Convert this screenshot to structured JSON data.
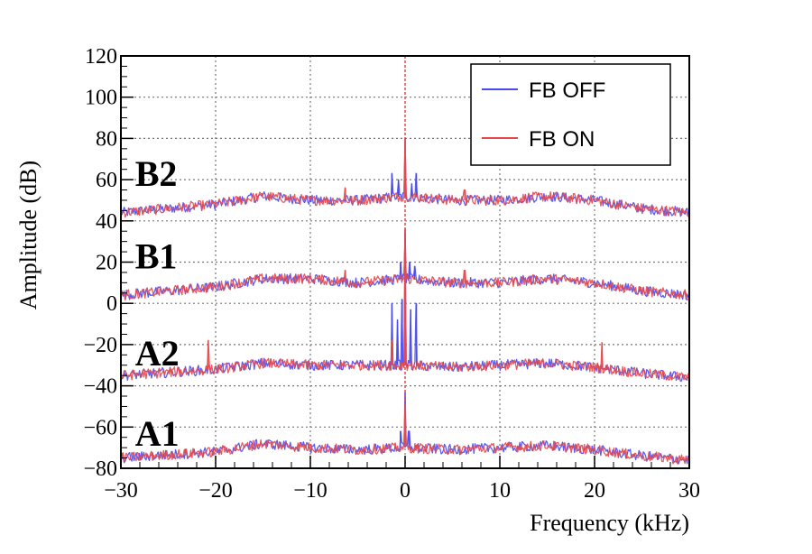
{
  "chart_data": {
    "type": "line",
    "title": "",
    "xlabel": "Frequency (kHz)",
    "ylabel": "Amplitude (dB)",
    "xlim": [
      -30,
      30
    ],
    "ylim": [
      -80,
      120
    ],
    "grid": true,
    "x_ticks": [
      -30,
      -20,
      -10,
      0,
      10,
      20,
      30
    ],
    "y_ticks": [
      -80,
      -60,
      -40,
      -20,
      0,
      20,
      40,
      60,
      80,
      100,
      120
    ],
    "x_tick_labels": [
      "−30",
      "−20",
      "−10",
      "0",
      "10",
      "20",
      "30"
    ],
    "y_tick_labels": [
      "−80",
      "−60",
      "−40",
      "−20",
      "0",
      "20",
      "40",
      "60",
      "80",
      "100",
      "120"
    ],
    "legend": {
      "position": "top-right",
      "entries": [
        {
          "label": "FB OFF",
          "color": "#4a4af0"
        },
        {
          "label": "FB ON",
          "color": "#e8484a"
        }
      ]
    },
    "traces": [
      {
        "label": "B2",
        "label_anchor": [
          -28.5,
          63
        ],
        "baseline": [
          [
            -30,
            44
          ],
          [
            -20,
            48
          ],
          [
            -15,
            52
          ],
          [
            -10,
            50
          ],
          [
            -5,
            50
          ],
          [
            0,
            52
          ],
          [
            5,
            50
          ],
          [
            10,
            50
          ],
          [
            15,
            52
          ],
          [
            20,
            50
          ],
          [
            25,
            46
          ],
          [
            30,
            44
          ]
        ],
        "peaks": {
          "FB OFF": [
            [
              -1.4,
              63
            ],
            [
              -0.7,
              60
            ],
            [
              0,
              80
            ],
            [
              0.7,
              58
            ],
            [
              1.2,
              63
            ]
          ],
          "FB ON": [
            [
              -6.3,
              56
            ],
            [
              0,
              80
            ],
            [
              6.3,
              55
            ]
          ]
        }
      },
      {
        "label": "B1",
        "label_anchor": [
          -28.5,
          23
        ],
        "baseline": [
          [
            -30,
            4
          ],
          [
            -20,
            8
          ],
          [
            -15,
            12
          ],
          [
            -10,
            12
          ],
          [
            -5,
            10
          ],
          [
            0,
            12
          ],
          [
            5,
            10
          ],
          [
            10,
            10
          ],
          [
            15,
            12
          ],
          [
            20,
            10
          ],
          [
            25,
            6
          ],
          [
            30,
            4
          ]
        ],
        "peaks": {
          "FB OFF": [
            [
              -0.5,
              20
            ],
            [
              0,
              34
            ],
            [
              0.5,
              20
            ],
            [
              1,
              18
            ]
          ],
          "FB ON": [
            [
              -6.3,
              16
            ],
            [
              0,
              34
            ],
            [
              6.3,
              16
            ]
          ]
        }
      },
      {
        "label": "A2",
        "label_anchor": [
          -28.5,
          -24
        ],
        "baseline": [
          [
            -30,
            -35
          ],
          [
            -20,
            -32
          ],
          [
            -15,
            -29
          ],
          [
            -10,
            -30
          ],
          [
            -5,
            -30
          ],
          [
            0,
            -30
          ],
          [
            5,
            -31
          ],
          [
            10,
            -30
          ],
          [
            15,
            -29
          ],
          [
            20,
            -31
          ],
          [
            25,
            -34
          ],
          [
            30,
            -36
          ]
        ],
        "peaks": {
          "FB OFF": [
            [
              -1.4,
              0
            ],
            [
              -0.8,
              -8
            ],
            [
              -0.3,
              2
            ],
            [
              0,
              36
            ],
            [
              0.6,
              -3
            ],
            [
              1.2,
              0
            ]
          ],
          "FB ON": [
            [
              -20.8,
              -18
            ],
            [
              -1.4,
              -18
            ],
            [
              0,
              36
            ],
            [
              20.8,
              -19
            ]
          ]
        }
      },
      {
        "label": "A1",
        "label_anchor": [
          -28.5,
          -63
        ],
        "baseline": [
          [
            -30,
            -75
          ],
          [
            -20,
            -72
          ],
          [
            -15,
            -68
          ],
          [
            -10,
            -70
          ],
          [
            -5,
            -71
          ],
          [
            0,
            -70
          ],
          [
            5,
            -71
          ],
          [
            10,
            -70
          ],
          [
            15,
            -69
          ],
          [
            20,
            -71
          ],
          [
            25,
            -74
          ],
          [
            30,
            -76
          ]
        ],
        "peaks": {
          "FB OFF": [
            [
              -0.5,
              -62
            ],
            [
              0,
              -43
            ],
            [
              0.4,
              -62
            ]
          ],
          "FB ON": [
            [
              0,
              -50
            ]
          ]
        }
      }
    ]
  }
}
